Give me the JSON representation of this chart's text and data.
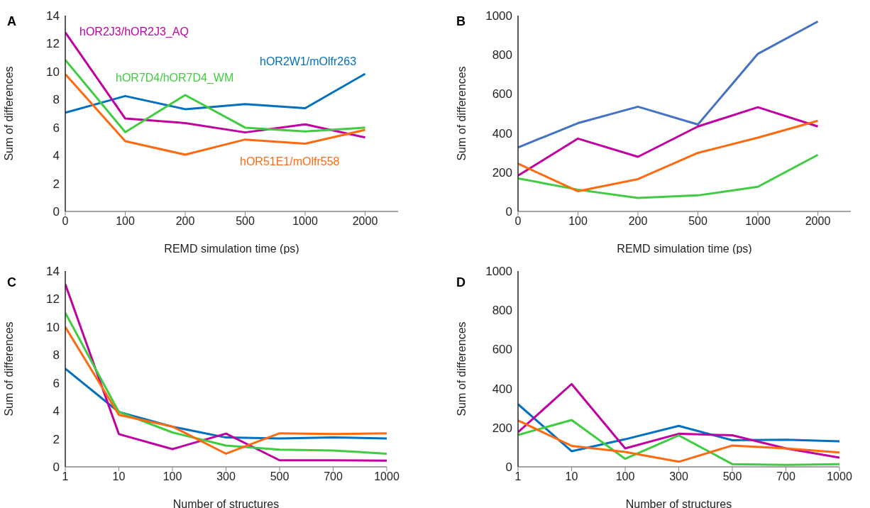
{
  "chart_data": [
    {
      "type": "line",
      "title": "A",
      "xlabel": "REMD simulation time (ps)",
      "ylabel": "Sum of differences",
      "categories": [
        "0",
        "100",
        "200",
        "500",
        "1000",
        "2000"
      ],
      "ylim": [
        0,
        14
      ],
      "yticks": [
        0,
        2,
        4,
        6,
        8,
        10,
        12,
        14
      ],
      "series": [
        {
          "name": "hOR2W1/mOlfr263",
          "color": "#0070c0",
          "values": [
            7.06,
            8.25,
            7.31,
            7.67,
            7.38,
            9.84
          ]
        },
        {
          "name": "hOR2J3/hOR2J3_AQ",
          "color": "#c000a0",
          "values": [
            12.8,
            6.64,
            6.32,
            5.65,
            6.23,
            5.29
          ]
        },
        {
          "name": "hOR7D4/hOR7D4_WM",
          "color": "#40cc40",
          "values": [
            10.83,
            5.67,
            8.32,
            5.99,
            5.72,
            5.99
          ]
        },
        {
          "name": "hOR51E1/mOlfr558",
          "color": "#ff6a10",
          "values": [
            9.82,
            5.02,
            4.06,
            5.14,
            4.84,
            5.83
          ]
        }
      ]
    },
    {
      "type": "line",
      "title": "B",
      "xlabel": "REMD simulation time (ps)",
      "ylabel": "Sum of differences",
      "categories": [
        "0",
        "100",
        "200",
        "500",
        "1000",
        "2000"
      ],
      "ylim": [
        0,
        1000
      ],
      "yticks": [
        0,
        200,
        400,
        600,
        800,
        1000
      ],
      "series": [
        {
          "color": "#4472c4",
          "values": [
            327,
            451,
            535,
            444,
            805,
            970
          ]
        },
        {
          "color": "#c000a0",
          "values": [
            183,
            372,
            279,
            434,
            532,
            434
          ]
        },
        {
          "color": "#40cc40",
          "values": [
            169,
            111,
            69,
            82,
            126,
            289
          ]
        },
        {
          "color": "#ff6a10",
          "values": [
            244,
            103,
            165,
            299,
            377,
            463
          ]
        }
      ]
    },
    {
      "type": "line",
      "title": "C",
      "xlabel": "Number of structures",
      "ylabel": "Sum of differences",
      "categories": [
        "1",
        "10",
        "100",
        "300",
        "500",
        "700",
        "1000"
      ],
      "ylim": [
        0,
        14
      ],
      "yticks": [
        0,
        2,
        4,
        6,
        8,
        10,
        12,
        14
      ],
      "series": [
        {
          "color": "#0070c0",
          "values": [
            7.02,
            3.92,
            2.87,
            2.1,
            2.03,
            2.1,
            2.03
          ]
        },
        {
          "color": "#c000a0",
          "values": [
            13.06,
            2.34,
            1.27,
            2.38,
            0.47,
            0.47,
            0.45
          ]
        },
        {
          "color": "#40cc40",
          "values": [
            11.01,
            3.92,
            2.46,
            1.52,
            1.23,
            1.17,
            0.94
          ]
        },
        {
          "color": "#ff6a10",
          "values": [
            10,
            3.72,
            2.88,
            0.94,
            2.4,
            2.34,
            2.4
          ]
        }
      ]
    },
    {
      "type": "line",
      "title": "D",
      "xlabel": "Number of structures",
      "ylabel": "Sum of differences",
      "categories": [
        "1",
        "10",
        "100",
        "300",
        "500",
        "700",
        "1000"
      ],
      "ylim": [
        0,
        1000
      ],
      "yticks": [
        0,
        200,
        400,
        600,
        800,
        1000
      ],
      "series": [
        {
          "color": "#0070c0",
          "values": [
            320,
            80,
            141,
            209,
            136,
            139,
            130
          ]
        },
        {
          "color": "#c000a0",
          "values": [
            177,
            423,
            94,
            169,
            161,
            94,
            47
          ]
        },
        {
          "color": "#40cc40",
          "values": [
            163,
            239,
            41,
            161,
            14,
            10,
            14
          ]
        },
        {
          "color": "#ff6a10",
          "values": [
            237,
            107,
            76,
            26,
            109,
            94,
            73
          ]
        }
      ]
    }
  ]
}
